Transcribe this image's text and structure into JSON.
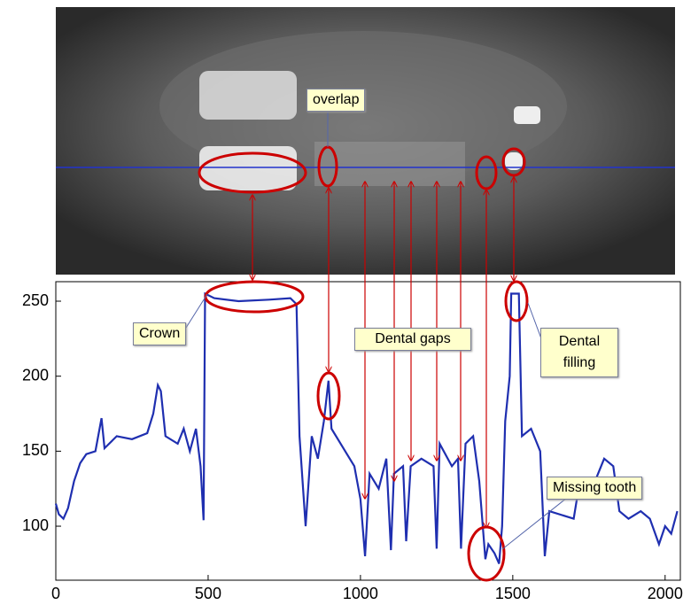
{
  "chart_data": {
    "type": "line",
    "annotations": [
      "overlap",
      "Crown",
      "Dental gaps",
      "Dental filling",
      "Missing tooth"
    ],
    "series": [
      {
        "color": "#1f2fb0",
        "x": [
          0,
          10,
          25,
          40,
          60,
          80,
          100,
          130,
          150,
          160,
          200,
          250,
          300,
          320,
          335,
          345,
          360,
          400,
          420,
          440,
          460,
          475,
          485,
          490,
          520,
          600,
          700,
          770,
          790,
          800,
          820,
          840,
          860,
          880,
          895,
          905,
          950,
          980,
          1000,
          1015,
          1030,
          1060,
          1085,
          1100,
          1110,
          1140,
          1150,
          1165,
          1200,
          1240,
          1250,
          1260,
          1300,
          1320,
          1330,
          1345,
          1370,
          1390,
          1410,
          1420,
          1440,
          1455,
          1465,
          1475,
          1490,
          1495,
          1520,
          1530,
          1560,
          1590,
          1605,
          1620,
          1700,
          1720,
          1750,
          1800,
          1830,
          1850,
          1880,
          1920,
          1950,
          1980,
          2000,
          2020,
          2040
        ],
        "values": [
          115,
          108,
          105,
          112,
          130,
          142,
          148,
          150,
          172,
          152,
          160,
          158,
          162,
          175,
          194,
          190,
          160,
          155,
          165,
          150,
          165,
          140,
          104,
          255,
          252,
          250,
          251,
          252,
          248,
          160,
          100,
          160,
          145,
          170,
          197,
          165,
          150,
          140,
          118,
          80,
          135,
          125,
          145,
          84,
          135,
          140,
          90,
          140,
          145,
          140,
          85,
          155,
          140,
          145,
          85,
          155,
          160,
          130,
          78,
          88,
          82,
          75,
          100,
          170,
          200,
          255,
          255,
          160,
          165,
          150,
          80,
          110,
          105,
          130,
          120,
          145,
          140,
          110,
          105,
          110,
          105,
          88,
          100,
          95,
          110
        ]
      }
    ],
    "xlim": [
      0,
      2050
    ],
    "ylim": [
      64,
      263
    ],
    "xticks": [
      0,
      500,
      1000,
      1500,
      2000
    ],
    "yticks": [
      100,
      150,
      200,
      250
    ]
  }
}
